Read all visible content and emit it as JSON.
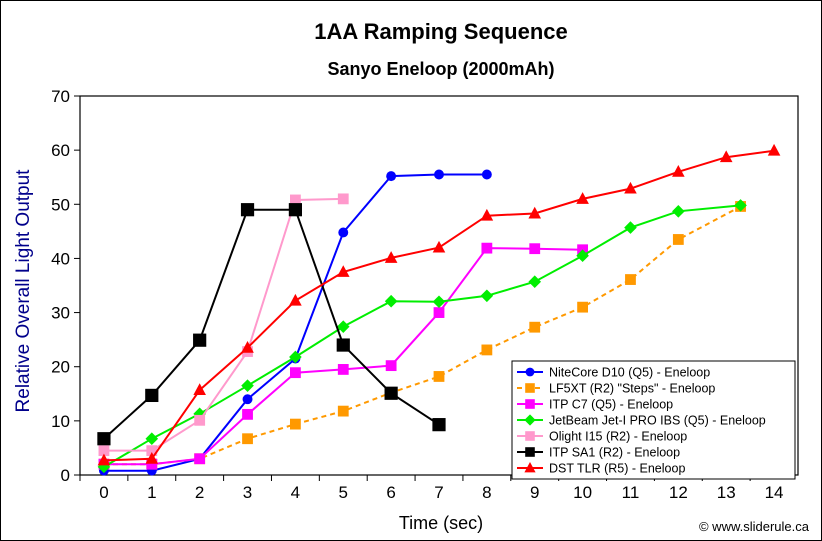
{
  "chart_data": {
    "type": "line",
    "title": "1AA Ramping Sequence",
    "subtitle": "Sanyo Eneloop (2000mAh)",
    "xlabel": "Time (sec)",
    "ylabel": "Relative Overall Light Output",
    "xlim": [
      -0.5,
      14.5
    ],
    "ylim": [
      0,
      70
    ],
    "xticks": [
      0,
      1,
      2,
      3,
      4,
      5,
      6,
      7,
      8,
      9,
      10,
      11,
      12,
      13,
      14
    ],
    "yticks": [
      0,
      10,
      20,
      30,
      40,
      50,
      60,
      70
    ],
    "grid": false,
    "legend_position": "bottom-right",
    "series": [
      {
        "name": "NiteCore D10 (Q5) - Eneloop",
        "color": "#0000ff",
        "marker": "circle",
        "dash": "solid",
        "x": [
          0,
          1,
          2,
          3,
          4,
          5,
          6,
          7,
          8
        ],
        "y": [
          0.8,
          0.8,
          3.0,
          14.0,
          21.5,
          44.8,
          55.2,
          55.5,
          55.5
        ]
      },
      {
        "name": "LF5XT (R2) \"Steps\" - Eneloop",
        "color": "#ff9900",
        "marker": "square",
        "dash": "dashed",
        "x": [
          0,
          1,
          2,
          3,
          4,
          5,
          6,
          7,
          8,
          9,
          10,
          11,
          12,
          13.3
        ],
        "y": [
          2.0,
          2.0,
          3.0,
          6.7,
          9.4,
          11.8,
          15.2,
          18.2,
          23.1,
          27.3,
          31.0,
          36.1,
          43.5,
          49.6
        ]
      },
      {
        "name": "ITP C7 (Q5) - Eneloop",
        "color": "#ff00ff",
        "marker": "square",
        "dash": "solid",
        "x": [
          0,
          1,
          2,
          3,
          4,
          5,
          6,
          7,
          8,
          9,
          10
        ],
        "y": [
          2.0,
          2.0,
          3.0,
          11.2,
          18.9,
          19.5,
          20.2,
          30.0,
          41.9,
          41.8,
          41.6
        ]
      },
      {
        "name": "JetBeam Jet-I PRO IBS (Q5) - Eneloop",
        "color": "#00ee00",
        "marker": "diamond",
        "dash": "solid",
        "x": [
          0,
          1,
          2,
          3,
          4,
          5,
          6,
          7,
          8,
          9,
          10,
          11,
          12,
          13.3
        ],
        "y": [
          1.5,
          6.7,
          11.3,
          16.5,
          21.8,
          27.4,
          32.1,
          32.0,
          33.1,
          35.7,
          40.5,
          45.7,
          48.7,
          49.8
        ]
      },
      {
        "name": "Olight I15 (R2) - Eneloop",
        "color": "#ff99cc",
        "marker": "square",
        "dash": "solid",
        "x": [
          0,
          1,
          2,
          3,
          4,
          5
        ],
        "y": [
          4.5,
          4.5,
          10.1,
          22.8,
          50.8,
          51.0
        ]
      },
      {
        "name": "ITP SA1 (R2) - Eneloop",
        "color": "#000000",
        "marker": "square",
        "dash": "solid",
        "x": [
          0,
          1,
          2,
          3,
          4,
          5,
          6,
          7
        ],
        "y": [
          6.7,
          14.7,
          24.9,
          49.0,
          49.0,
          24.0,
          15.1,
          9.3
        ]
      },
      {
        "name": "DST TLR (R5) - Eneloop",
        "color": "#ff0000",
        "marker": "triangle",
        "dash": "solid",
        "x": [
          0,
          1,
          2,
          3,
          4,
          5,
          6,
          7,
          8,
          9,
          10,
          11,
          12,
          13,
          14
        ],
        "y": [
          2.7,
          3.0,
          15.7,
          23.5,
          32.2,
          37.5,
          40.1,
          42.0,
          47.9,
          48.3,
          51.0,
          52.9,
          56.0,
          58.7,
          59.9
        ]
      }
    ]
  },
  "credit": "© www.sliderule.ca"
}
